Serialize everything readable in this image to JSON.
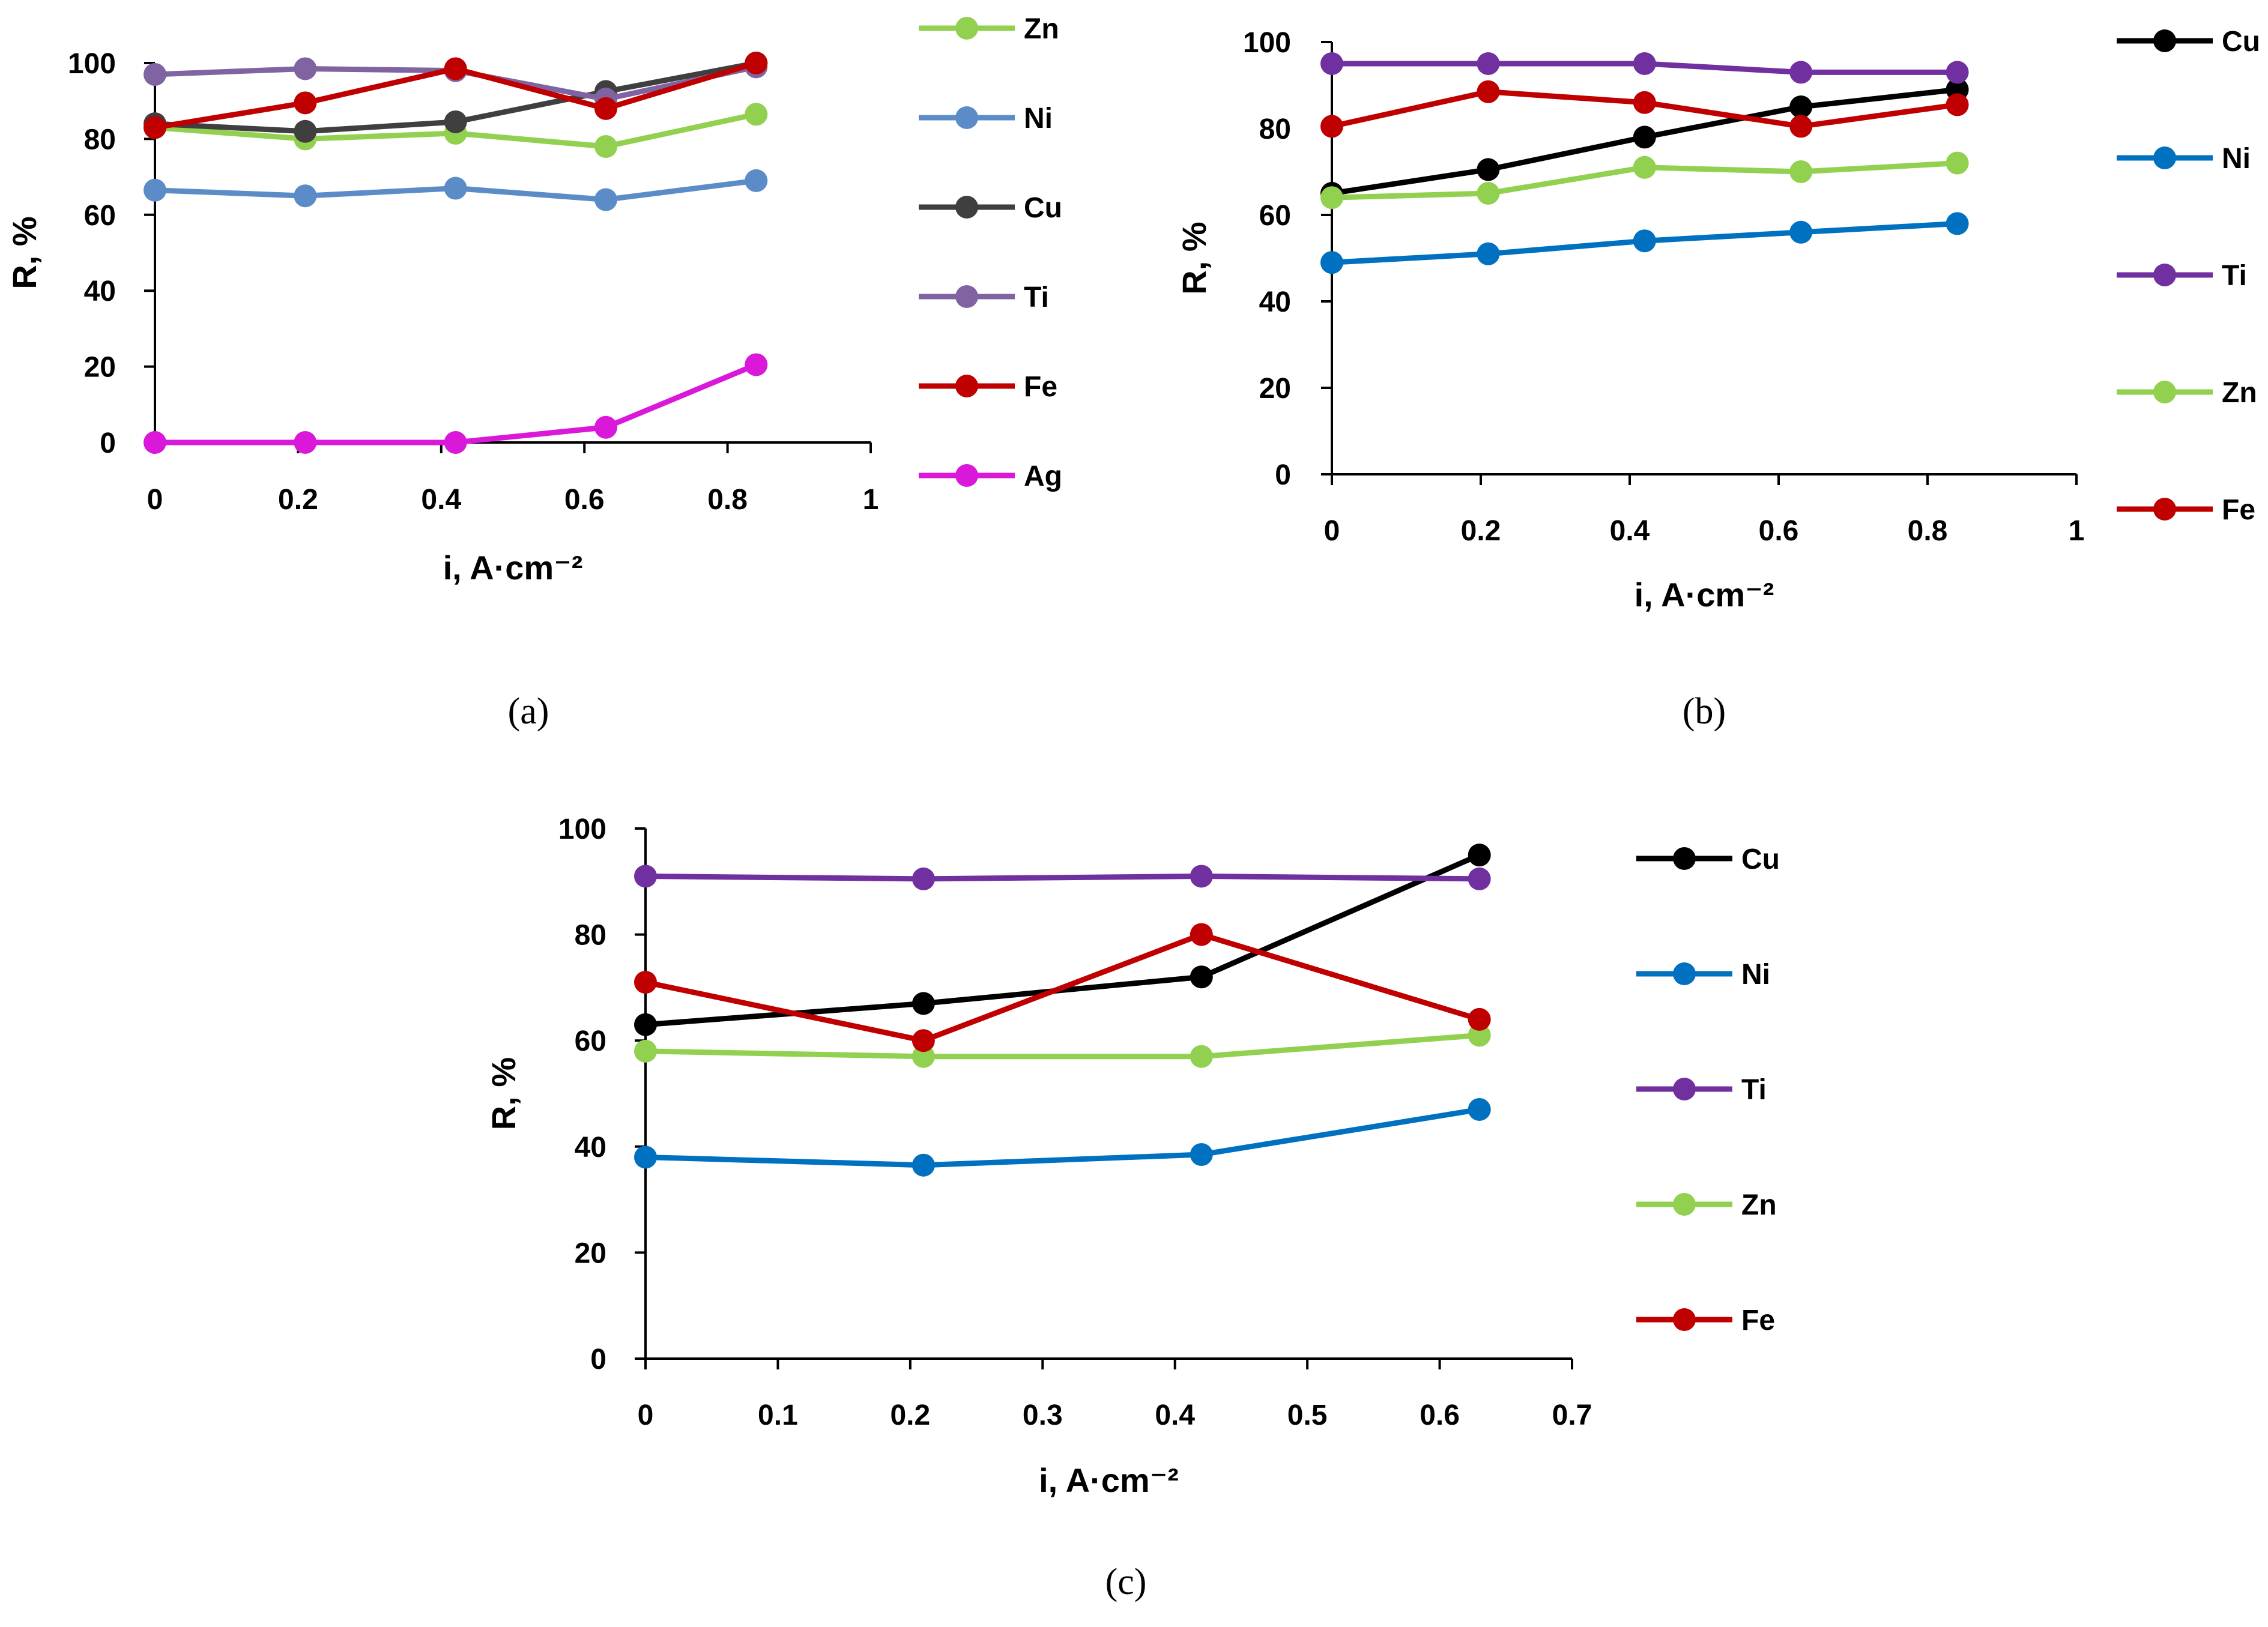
{
  "chart_data": [
    {
      "id": "a",
      "type": "line",
      "caption": "(a)",
      "xlabel": "i, A·cm⁻²",
      "ylabel": "R, %",
      "xlim": [
        0,
        1
      ],
      "ylim": [
        0,
        100
      ],
      "xticks": [
        "0",
        "0.2",
        "0.4",
        "0.6",
        "0.8",
        "1"
      ],
      "yticks": [
        "0",
        "20",
        "40",
        "60",
        "80",
        "100"
      ],
      "legend_position": "right",
      "series": [
        {
          "name": "Zn",
          "color": "#92d050",
          "x": [
            0,
            0.21,
            0.42,
            0.63,
            0.84
          ],
          "values": [
            83,
            80,
            81.5,
            78,
            86.5
          ]
        },
        {
          "name": "Ni",
          "color": "#5b8cc8",
          "x": [
            0,
            0.21,
            0.42,
            0.63,
            0.84
          ],
          "values": [
            66.5,
            65,
            67,
            64,
            69
          ]
        },
        {
          "name": "Cu",
          "color": "#3f3f3f",
          "x": [
            0,
            0.21,
            0.42,
            0.63,
            0.84
          ],
          "values": [
            84,
            82,
            84.5,
            92.5,
            100
          ]
        },
        {
          "name": "Ti",
          "color": "#8064a2",
          "x": [
            0,
            0.21,
            0.42,
            0.63,
            0.84
          ],
          "values": [
            97,
            98.5,
            98,
            90.5,
            99
          ]
        },
        {
          "name": "Fe",
          "color": "#c00000",
          "x": [
            0,
            0.21,
            0.42,
            0.63,
            0.84
          ],
          "values": [
            83,
            89.5,
            98.5,
            88,
            100
          ]
        },
        {
          "name": "Ag",
          "color": "#d918d9",
          "x": [
            0,
            0.21,
            0.42,
            0.63,
            0.84
          ],
          "values": [
            0,
            0,
            0,
            4,
            20.5
          ]
        }
      ]
    },
    {
      "id": "b",
      "type": "line",
      "caption": "(b)",
      "xlabel": "i, A·cm⁻²",
      "ylabel": "R, %",
      "xlim": [
        0,
        1
      ],
      "ylim": [
        0,
        100
      ],
      "xticks": [
        "0",
        "0.2",
        "0.4",
        "0.6",
        "0.8",
        "1"
      ],
      "yticks": [
        "0",
        "20",
        "40",
        "60",
        "80",
        "100"
      ],
      "legend_position": "right",
      "series": [
        {
          "name": "Cu",
          "color": "#000000",
          "x": [
            0,
            0.21,
            0.42,
            0.63,
            0.84
          ],
          "values": [
            65,
            70.5,
            78,
            85,
            89
          ]
        },
        {
          "name": "Ni",
          "color": "#0070c0",
          "x": [
            0,
            0.21,
            0.42,
            0.63,
            0.84
          ],
          "values": [
            49,
            51,
            54,
            56,
            58
          ]
        },
        {
          "name": "Ti",
          "color": "#7030a0",
          "x": [
            0,
            0.21,
            0.42,
            0.63,
            0.84
          ],
          "values": [
            95,
            95,
            95,
            93,
            93
          ]
        },
        {
          "name": "Zn",
          "color": "#92d050",
          "x": [
            0,
            0.21,
            0.42,
            0.63,
            0.84
          ],
          "values": [
            64,
            65,
            71,
            70,
            72
          ]
        },
        {
          "name": "Fe",
          "color": "#c00000",
          "x": [
            0,
            0.21,
            0.42,
            0.63,
            0.84
          ],
          "values": [
            80.5,
            88.5,
            86,
            80.5,
            85.5
          ]
        }
      ]
    },
    {
      "id": "c",
      "type": "line",
      "caption": "(c)",
      "xlabel": "i, A·cm⁻²",
      "ylabel": "R, %",
      "xlim": [
        0,
        0.7
      ],
      "ylim": [
        0,
        100
      ],
      "xticks": [
        "0",
        "0.1",
        "0.2",
        "0.3",
        "0.4",
        "0.5",
        "0.6",
        "0.7"
      ],
      "yticks": [
        "0",
        "20",
        "40",
        "60",
        "80",
        "100"
      ],
      "legend_position": "right",
      "series": [
        {
          "name": "Cu",
          "color": "#000000",
          "x": [
            0,
            0.21,
            0.42,
            0.63
          ],
          "values": [
            63,
            67,
            72,
            95
          ]
        },
        {
          "name": "Ni",
          "color": "#0070c0",
          "x": [
            0,
            0.21,
            0.42,
            0.63
          ],
          "values": [
            38,
            36.5,
            38.5,
            47
          ]
        },
        {
          "name": "Ti",
          "color": "#7030a0",
          "x": [
            0,
            0.21,
            0.42,
            0.63
          ],
          "values": [
            91,
            90.5,
            91,
            90.5
          ]
        },
        {
          "name": "Zn",
          "color": "#92d050",
          "x": [
            0,
            0.21,
            0.42,
            0.63
          ],
          "values": [
            58,
            57,
            57,
            61
          ]
        },
        {
          "name": "Fe",
          "color": "#c00000",
          "x": [
            0,
            0.21,
            0.42,
            0.63
          ],
          "values": [
            71,
            60,
            80,
            64
          ]
        }
      ]
    }
  ]
}
